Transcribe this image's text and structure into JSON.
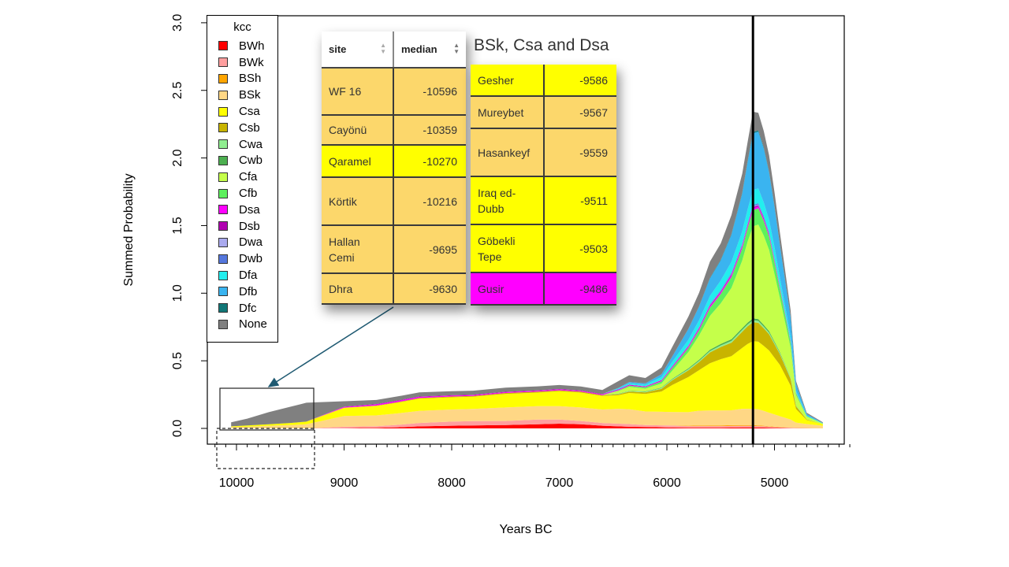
{
  "chart_data": {
    "type": "area",
    "stacked": true,
    "xlabel": "Years BC",
    "ylabel": "Summed Probability",
    "xlim": [
      10200,
      4300
    ],
    "ylim": [
      0,
      3.0
    ],
    "x_ticks": [
      10000,
      9000,
      8000,
      7000,
      6000,
      5000
    ],
    "y_ticks": [
      0.0,
      0.5,
      1.0,
      1.5,
      2.0,
      2.5,
      3.0
    ],
    "y_tick_labels": [
      "0.0",
      "0.5",
      "1.0",
      "1.5",
      "2.0",
      "2.5",
      "3.0"
    ],
    "vertical_line_x": 5200,
    "x": [
      10050,
      9900,
      9700,
      9500,
      9350,
      9000,
      8700,
      8500,
      8300,
      8000,
      7800,
      7500,
      7200,
      7000,
      6800,
      6600,
      6450,
      6350,
      6200,
      6050,
      5950,
      5800,
      5700,
      5600,
      5500,
      5400,
      5300,
      5250,
      5200,
      5150,
      5100,
      5050,
      5000,
      4950,
      4850,
      4800,
      4700,
      4550
    ],
    "series": [
      {
        "name": "BWh",
        "color": "#ff0000",
        "values": [
          0,
          0,
          0,
          0,
          0,
          0.002,
          0.004,
          0.008,
          0.015,
          0.02,
          0.022,
          0.025,
          0.03,
          0.035,
          0.03,
          0.02,
          0.015,
          0.012,
          0.01,
          0.008,
          0.006,
          0.005,
          0.005,
          0.005,
          0.005,
          0.006,
          0.007,
          0.007,
          0.007,
          0.006,
          0.006,
          0.005,
          0.004,
          0.003,
          0.002,
          0.001,
          0.001,
          0.0
        ]
      },
      {
        "name": "BWk",
        "color": "#ff9f9f",
        "values": [
          0,
          0,
          0,
          0,
          0,
          0.01,
          0.012,
          0.018,
          0.025,
          0.03,
          0.032,
          0.03,
          0.035,
          0.03,
          0.025,
          0.02,
          0.02,
          0.02,
          0.015,
          0.015,
          0.015,
          0.012,
          0.012,
          0.012,
          0.012,
          0.012,
          0.012,
          0.012,
          0.012,
          0.01,
          0.01,
          0.008,
          0.006,
          0.005,
          0.003,
          0.002,
          0.001,
          0.0
        ]
      },
      {
        "name": "BSh",
        "color": "#ffa500",
        "values": [
          0,
          0,
          0,
          0,
          0,
          0,
          0,
          0,
          0,
          0,
          0,
          0,
          0,
          0,
          0,
          0,
          0,
          0,
          0,
          0,
          0,
          0.003,
          0.004,
          0.005,
          0.005,
          0.006,
          0.006,
          0.006,
          0.006,
          0.005,
          0.004,
          0.003,
          0.003,
          0.002,
          0.001,
          0.0,
          0,
          0
        ]
      },
      {
        "name": "BSk",
        "color": "#ffd785",
        "values": [
          0.01,
          0.012,
          0.02,
          0.025,
          0.03,
          0.08,
          0.08,
          0.085,
          0.09,
          0.09,
          0.09,
          0.1,
          0.1,
          0.1,
          0.1,
          0.1,
          0.11,
          0.11,
          0.1,
          0.1,
          0.1,
          0.1,
          0.11,
          0.11,
          0.11,
          0.11,
          0.12,
          0.12,
          0.12,
          0.12,
          0.11,
          0.1,
          0.09,
          0.08,
          0.06,
          0.04,
          0.03,
          0.02
        ]
      },
      {
        "name": "Csa",
        "color": "#ffff00",
        "values": [
          0.005,
          0.01,
          0.01,
          0.015,
          0.02,
          0.06,
          0.07,
          0.08,
          0.09,
          0.09,
          0.09,
          0.1,
          0.1,
          0.11,
          0.11,
          0.1,
          0.1,
          0.12,
          0.13,
          0.15,
          0.2,
          0.26,
          0.3,
          0.35,
          0.38,
          0.4,
          0.45,
          0.48,
          0.5,
          0.5,
          0.48,
          0.46,
          0.42,
          0.38,
          0.25,
          0.1,
          0.03,
          0.01
        ]
      },
      {
        "name": "Csb",
        "color": "#c8b400",
        "values": [
          0,
          0,
          0,
          0,
          0,
          0.002,
          0.003,
          0.004,
          0.005,
          0.006,
          0.006,
          0.007,
          0.007,
          0.007,
          0.007,
          0.006,
          0.008,
          0.01,
          0.012,
          0.02,
          0.035,
          0.05,
          0.06,
          0.08,
          0.09,
          0.1,
          0.12,
          0.13,
          0.14,
          0.14,
          0.13,
          0.12,
          0.1,
          0.08,
          0.05,
          0.02,
          0.005,
          0
        ]
      },
      {
        "name": "Cwa",
        "color": "#90ee90",
        "values": [
          0,
          0,
          0,
          0,
          0,
          0,
          0,
          0,
          0,
          0,
          0,
          0,
          0,
          0,
          0,
          0,
          0.002,
          0.003,
          0.004,
          0.005,
          0.006,
          0.008,
          0.009,
          0.01,
          0.012,
          0.013,
          0.014,
          0.014,
          0.015,
          0.014,
          0.013,
          0.012,
          0.01,
          0.008,
          0.005,
          0.002,
          0,
          0
        ]
      },
      {
        "name": "Cwb",
        "color": "#4caf50",
        "values": [
          0,
          0,
          0,
          0,
          0,
          0,
          0,
          0,
          0,
          0,
          0,
          0,
          0,
          0,
          0,
          0,
          0.002,
          0.002,
          0.003,
          0.004,
          0.005,
          0.007,
          0.008,
          0.01,
          0.011,
          0.012,
          0.013,
          0.013,
          0.014,
          0.013,
          0.012,
          0.011,
          0.009,
          0.007,
          0.004,
          0.002,
          0,
          0
        ]
      },
      {
        "name": "Cfa",
        "color": "#c5ff4a",
        "values": [
          0,
          0,
          0,
          0,
          0,
          0,
          0,
          0,
          0,
          0,
          0,
          0,
          0,
          0,
          0,
          0,
          0.02,
          0.03,
          0.02,
          0.03,
          0.06,
          0.12,
          0.18,
          0.25,
          0.3,
          0.38,
          0.5,
          0.6,
          0.68,
          0.7,
          0.66,
          0.6,
          0.5,
          0.4,
          0.22,
          0.08,
          0.02,
          0.005
        ]
      },
      {
        "name": "Cfb",
        "color": "#5df05d",
        "values": [
          0,
          0,
          0,
          0,
          0,
          0,
          0,
          0,
          0,
          0,
          0,
          0,
          0,
          0,
          0,
          0,
          0.005,
          0.008,
          0.01,
          0.015,
          0.02,
          0.03,
          0.04,
          0.06,
          0.07,
          0.08,
          0.09,
          0.1,
          0.12,
          0.12,
          0.11,
          0.1,
          0.09,
          0.07,
          0.04,
          0.015,
          0.004,
          0.001
        ]
      },
      {
        "name": "Dsa",
        "color": "#ff00ff",
        "values": [
          0,
          0,
          0,
          0,
          0,
          0.005,
          0.008,
          0.008,
          0.008,
          0.006,
          0.006,
          0.006,
          0.006,
          0.006,
          0.005,
          0.005,
          0.005,
          0.005,
          0.004,
          0.005,
          0.006,
          0.008,
          0.009,
          0.01,
          0.01,
          0.012,
          0.012,
          0.013,
          0.014,
          0.013,
          0.012,
          0.011,
          0.01,
          0.008,
          0.005,
          0.002,
          0,
          0
        ]
      },
      {
        "name": "Dsb",
        "color": "#b000b0",
        "values": [
          0,
          0,
          0,
          0,
          0,
          0.002,
          0.003,
          0.004,
          0.003,
          0.003,
          0.003,
          0.003,
          0.003,
          0.003,
          0.003,
          0.003,
          0.003,
          0.003,
          0.003,
          0.004,
          0.004,
          0.005,
          0.006,
          0.007,
          0.007,
          0.008,
          0.009,
          0.009,
          0.01,
          0.009,
          0.009,
          0.008,
          0.007,
          0.005,
          0.003,
          0.001,
          0,
          0
        ]
      },
      {
        "name": "Dwa",
        "color": "#aaaaee",
        "values": [
          0,
          0,
          0,
          0,
          0,
          0,
          0,
          0,
          0,
          0,
          0,
          0,
          0,
          0,
          0,
          0,
          0,
          0.001,
          0.001,
          0.002,
          0.002,
          0.003,
          0.003,
          0.004,
          0.004,
          0.005,
          0.005,
          0.005,
          0.005,
          0.005,
          0.005,
          0.004,
          0.004,
          0.003,
          0.002,
          0.001,
          0,
          0
        ]
      },
      {
        "name": "Dwb",
        "color": "#5577dd",
        "values": [
          0,
          0,
          0,
          0,
          0,
          0,
          0,
          0,
          0,
          0,
          0,
          0,
          0,
          0,
          0,
          0,
          0,
          0.001,
          0.001,
          0.002,
          0.003,
          0.004,
          0.005,
          0.006,
          0.007,
          0.008,
          0.009,
          0.01,
          0.01,
          0.01,
          0.01,
          0.009,
          0.008,
          0.006,
          0.004,
          0.002,
          0,
          0
        ]
      },
      {
        "name": "Dfa",
        "color": "#22eeee",
        "values": [
          0,
          0,
          0,
          0,
          0,
          0,
          0,
          0,
          0,
          0,
          0,
          0,
          0,
          0,
          0,
          0,
          0.005,
          0.008,
          0.01,
          0.02,
          0.03,
          0.04,
          0.05,
          0.06,
          0.07,
          0.08,
          0.09,
          0.1,
          0.11,
          0.11,
          0.1,
          0.09,
          0.08,
          0.06,
          0.03,
          0.012,
          0.003,
          0.001
        ]
      },
      {
        "name": "Dfb",
        "color": "#3ab4f0",
        "values": [
          0,
          0,
          0,
          0,
          0,
          0,
          0,
          0,
          0,
          0,
          0,
          0,
          0,
          0,
          0,
          0,
          0.005,
          0.01,
          0.01,
          0.02,
          0.04,
          0.08,
          0.1,
          0.13,
          0.15,
          0.2,
          0.28,
          0.35,
          0.42,
          0.42,
          0.4,
          0.35,
          0.3,
          0.24,
          0.14,
          0.05,
          0.012,
          0.003
        ]
      },
      {
        "name": "Dfc",
        "color": "#117777",
        "values": [
          0,
          0,
          0,
          0,
          0,
          0,
          0,
          0,
          0,
          0,
          0,
          0,
          0,
          0,
          0,
          0,
          0,
          0,
          0,
          0,
          0,
          0.002,
          0.003,
          0.004,
          0.005,
          0.006,
          0.007,
          0.008,
          0.009,
          0.009,
          0.008,
          0.007,
          0.006,
          0.005,
          0.003,
          0.001,
          0,
          0
        ]
      },
      {
        "name": "None",
        "color": "#808080",
        "values": [
          0.03,
          0.05,
          0.09,
          0.12,
          0.14,
          0.04,
          0.03,
          0.03,
          0.03,
          0.03,
          0.03,
          0.03,
          0.03,
          0.03,
          0.03,
          0.03,
          0.05,
          0.05,
          0.04,
          0.05,
          0.07,
          0.09,
          0.1,
          0.12,
          0.12,
          0.14,
          0.14,
          0.14,
          0.15,
          0.13,
          0.12,
          0.12,
          0.1,
          0.09,
          0.05,
          0.02,
          0.01,
          0.005
        ]
      }
    ]
  },
  "legend": {
    "title": "kcc",
    "items": [
      {
        "label": "BWh",
        "color": "#ff0000"
      },
      {
        "label": "BWk",
        "color": "#ff9f9f"
      },
      {
        "label": "BSh",
        "color": "#ffa500"
      },
      {
        "label": "BSk",
        "color": "#ffd785"
      },
      {
        "label": "Csa",
        "color": "#ffff00"
      },
      {
        "label": "Csb",
        "color": "#c8b400"
      },
      {
        "label": "Cwa",
        "color": "#90ee90"
      },
      {
        "label": "Cwb",
        "color": "#4caf50"
      },
      {
        "label": "Cfa",
        "color": "#c5ff4a"
      },
      {
        "label": "Cfb",
        "color": "#5df05d"
      },
      {
        "label": "Dsa",
        "color": "#ff00ff"
      },
      {
        "label": "Dsb",
        "color": "#b000b0"
      },
      {
        "label": "Dwa",
        "color": "#aaaaee"
      },
      {
        "label": "Dwb",
        "color": "#5577dd"
      },
      {
        "label": "Dfa",
        "color": "#22eeee"
      },
      {
        "label": "Dfb",
        "color": "#3ab4f0"
      },
      {
        "label": "Dfc",
        "color": "#117777"
      },
      {
        "label": "None",
        "color": "#808080"
      }
    ]
  },
  "overlay_title": "BSk, Csa and Dsa",
  "table_left": {
    "headers": {
      "site": "site",
      "median": "median"
    },
    "rows": [
      {
        "site": "WF 16",
        "median": "-10596",
        "color": "#fcd76b"
      },
      {
        "site": "Cayönü",
        "median": "-10359",
        "color": "#fcd76b"
      },
      {
        "site": "Qaramel",
        "median": "-10270",
        "color": "#ffff00"
      },
      {
        "site": "Körtik",
        "median": "-10216",
        "color": "#fcd76b"
      },
      {
        "site": "Hallan Cemi",
        "median": "-9695",
        "color": "#fcd76b"
      },
      {
        "site": "Dhra",
        "median": "-9630",
        "color": "#fcd76b"
      }
    ]
  },
  "table_right": {
    "rows": [
      {
        "site": "Gesher",
        "median": "-9586",
        "color": "#ffff00"
      },
      {
        "site": "Mureybet",
        "median": "-9567",
        "color": "#fcd76b"
      },
      {
        "site": "Hasankeyf",
        "median": "-9559",
        "color": "#fcd76b"
      },
      {
        "site": "Iraq ed-Dubb",
        "median": "-9511",
        "color": "#ffff00"
      },
      {
        "site": "Göbekli Tepe",
        "median": "-9503",
        "color": "#ffff00"
      },
      {
        "site": "Gusir",
        "median": "-9486",
        "color": "#ff00ff"
      }
    ]
  }
}
